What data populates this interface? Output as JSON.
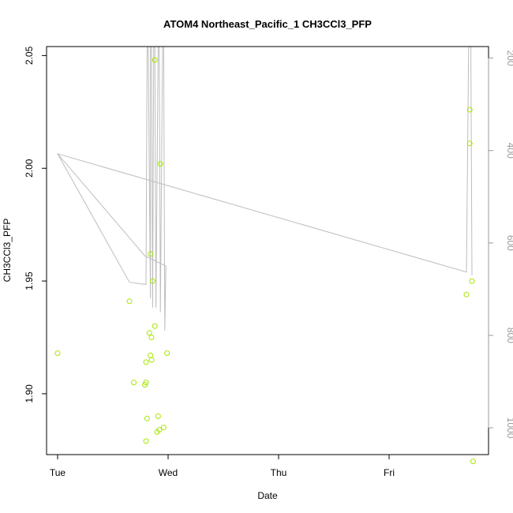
{
  "chart_data": {
    "type": "scatter",
    "title": "ATOM4 Northeast_Pacific_1 CH3CCl3_PFP",
    "xlabel": "Date",
    "ylabel": "CH3CCl3_PFP",
    "x_ticks": [
      {
        "label": "Tue",
        "value": 0
      },
      {
        "label": "Wed",
        "value": 1
      },
      {
        "label": "Thu",
        "value": 2
      },
      {
        "label": "Fri",
        "value": 3
      }
    ],
    "xlim": [
      -0.1,
      3.9
    ],
    "ylim": [
      1.873,
      2.054
    ],
    "y_ticks": [
      1.9,
      1.95,
      2.0,
      2.05
    ],
    "y2_ticks": [
      200,
      400,
      600,
      800,
      1000
    ],
    "y2lim": [
      1058,
      175
    ],
    "grid": false,
    "colors": {
      "points": "#a6e600",
      "line": "#bdbdbd",
      "axis": "#000000",
      "axis2": "#999999"
    },
    "series": [
      {
        "values": [
          {
            "x": 0.0,
            "y": 1.918
          },
          {
            "x": 0.65,
            "y": 1.941
          },
          {
            "x": 0.69,
            "y": 1.905
          },
          {
            "x": 0.79,
            "y": 1.904
          },
          {
            "x": 0.8,
            "y": 1.905
          },
          {
            "x": 0.8,
            "y": 1.914
          },
          {
            "x": 0.81,
            "y": 1.889
          },
          {
            "x": 0.8,
            "y": 1.879
          },
          {
            "x": 0.83,
            "y": 1.927
          },
          {
            "x": 0.84,
            "y": 1.917
          },
          {
            "x": 0.85,
            "y": 1.915
          },
          {
            "x": 0.85,
            "y": 1.925
          },
          {
            "x": 0.84,
            "y": 1.962
          },
          {
            "x": 0.86,
            "y": 1.95
          },
          {
            "x": 0.88,
            "y": 1.93
          },
          {
            "x": 0.88,
            "y": 2.048
          },
          {
            "x": 0.9,
            "y": 1.883
          },
          {
            "x": 0.92,
            "y": 1.884
          },
          {
            "x": 0.91,
            "y": 1.89
          },
          {
            "x": 0.93,
            "y": 2.002
          },
          {
            "x": 0.96,
            "y": 1.885
          },
          {
            "x": 0.99,
            "y": 1.918
          },
          {
            "x": 3.7,
            "y": 1.944
          },
          {
            "x": 3.73,
            "y": 2.026
          },
          {
            "x": 3.73,
            "y": 2.011
          },
          {
            "x": 3.75,
            "y": 1.95
          },
          {
            "x": 3.76,
            "y": 1.87
          }
        ]
      },
      {
        "values": [
          {
            "x": 0.0,
            "y": 407
          },
          {
            "x": 0.79,
            "y": 628
          },
          {
            "x": 0.98,
            "y": 650
          },
          {
            "x": 0.97,
            "y": 790
          },
          {
            "x": 0.96,
            "y": 170
          },
          {
            "x": 0.95,
            "y": 170
          },
          {
            "x": 0.93,
            "y": 750
          },
          {
            "x": 0.92,
            "y": 170
          },
          {
            "x": 0.91,
            "y": 170
          },
          {
            "x": 0.89,
            "y": 740
          },
          {
            "x": 0.88,
            "y": 170
          },
          {
            "x": 0.87,
            "y": 170
          },
          {
            "x": 0.86,
            "y": 740
          },
          {
            "x": 0.85,
            "y": 170
          },
          {
            "x": 0.84,
            "y": 170
          },
          {
            "x": 0.84,
            "y": 720
          },
          {
            "x": 0.82,
            "y": 170
          },
          {
            "x": 0.81,
            "y": 170
          },
          {
            "x": 0.8,
            "y": 690
          },
          {
            "x": 0.65,
            "y": 685
          },
          {
            "x": 0.0,
            "y": 407
          },
          {
            "x": 3.7,
            "y": 663
          },
          {
            "x": 3.72,
            "y": 170
          },
          {
            "x": 3.74,
            "y": 170
          },
          {
            "x": 3.75,
            "y": 670
          }
        ]
      }
    ]
  }
}
